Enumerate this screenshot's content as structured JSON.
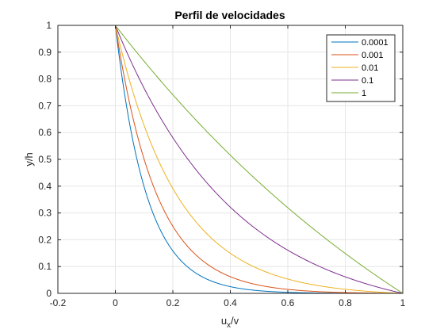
{
  "chart_data": {
    "type": "line",
    "title": "Perfil de velocidades",
    "xlabel": {
      "main": "u",
      "sub": "x",
      "tail": "/v"
    },
    "ylabel": "y/h",
    "xlim": [
      -0.2,
      1
    ],
    "ylim": [
      0,
      1
    ],
    "xticks": [
      "-0.2",
      "0",
      "0.2",
      "0.4",
      "0.6",
      "0.8",
      "1"
    ],
    "yticks": [
      "0",
      "0.1",
      "0.2",
      "0.3",
      "0.4",
      "0.5",
      "0.6",
      "0.7",
      "0.8",
      "0.9",
      "1"
    ],
    "grid": true,
    "legend_position": "top-right",
    "series": [
      {
        "name": "0.0001",
        "color": "#0072BD",
        "param": 0.0001
      },
      {
        "name": "0.001",
        "color": "#D95319",
        "param": 0.001
      },
      {
        "name": "0.01",
        "color": "#EDB120",
        "param": 0.01
      },
      {
        "name": "0.1",
        "color": "#7E2F8E",
        "param": 0.1
      },
      {
        "name": "1",
        "color": "#77AC30",
        "param": 1
      }
    ]
  }
}
